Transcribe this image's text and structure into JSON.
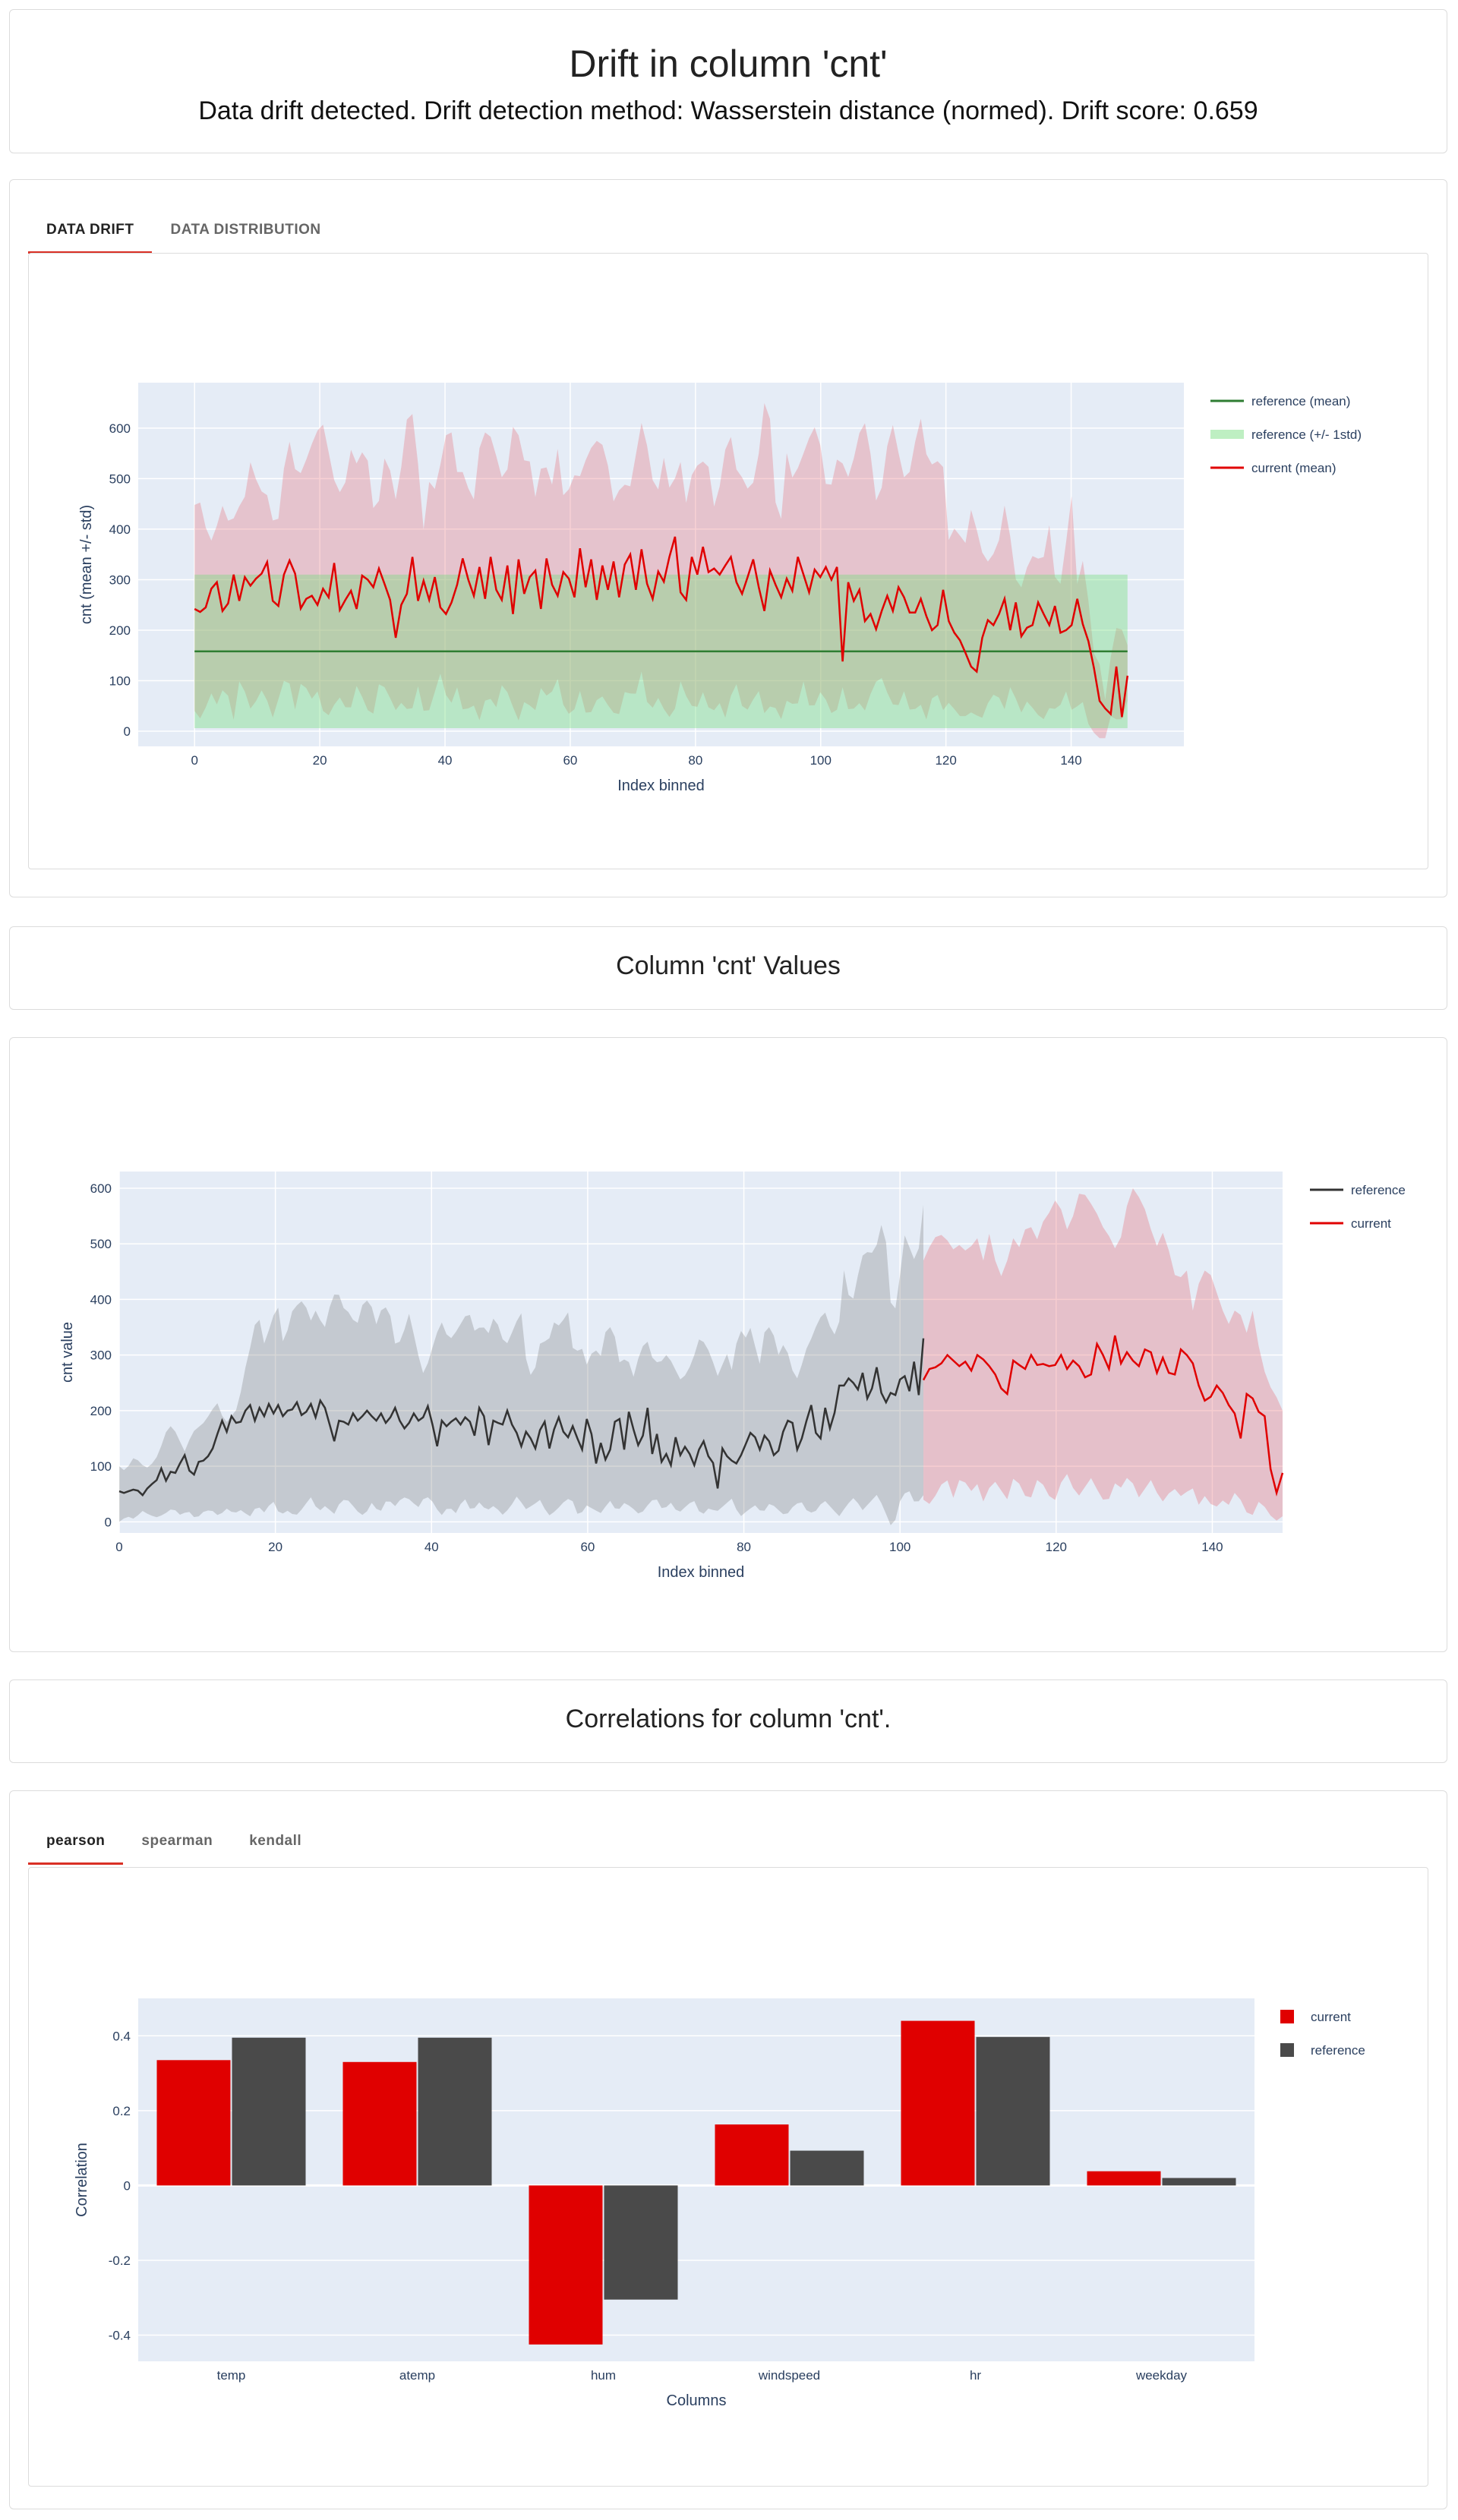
{
  "header": {
    "title": "Drift in column 'cnt'",
    "subtitle": "Data drift detected. Drift detection method: Wasserstein distance (normed). Drift score: 0.659"
  },
  "drift_tabs": [
    "DATA DRIFT",
    "DATA DISTRIBUTION"
  ],
  "values_title": "Column 'cnt' Values",
  "correlations_title": "Correlations for column 'cnt'.",
  "corr_tabs": [
    "pearson",
    "spearman",
    "kendall"
  ],
  "colors": {
    "current": "#e00000",
    "reference": "#4a4a4a",
    "ref_mean": "#2e7d32",
    "plot_bg": "#e5ecf6",
    "tab_accent": "#d93025"
  },
  "chart_data": [
    {
      "type": "line",
      "name": "drift",
      "xlabel": "Index binned",
      "ylabel": "cnt (mean +/- std)",
      "xlim": [
        -9,
        158
      ],
      "ylim": [
        -30,
        690
      ],
      "xticks": [
        0,
        20,
        40,
        60,
        80,
        100,
        120,
        140
      ],
      "yticks": [
        0,
        100,
        200,
        300,
        400,
        500,
        600
      ],
      "legend": [
        "reference (mean)",
        "reference (+/- 1std)",
        "current (mean)"
      ],
      "reference_mean": 158,
      "reference_std_band": [
        6,
        310
      ],
      "current_mean": [
        242,
        236,
        245,
        282,
        295,
        238,
        253,
        310,
        258,
        305,
        288,
        302,
        312,
        335,
        258,
        248,
        310,
        338,
        312,
        243,
        262,
        268,
        250,
        282,
        265,
        333,
        240,
        260,
        278,
        242,
        308,
        300,
        285,
        322,
        292,
        260,
        185,
        250,
        272,
        345,
        258,
        298,
        260,
        305,
        245,
        232,
        255,
        290,
        342,
        300,
        268,
        325,
        262,
        345,
        280,
        260,
        328,
        232,
        340,
        272,
        305,
        318,
        242,
        342,
        290,
        268,
        315,
        302,
        265,
        362,
        285,
        340,
        260,
        328,
        280,
        336,
        265,
        330,
        350,
        280,
        360,
        292,
        262,
        316,
        296,
        345,
        385,
        275,
        260,
        345,
        310,
        365,
        315,
        322,
        310,
        328,
        345,
        295,
        272,
        305,
        340,
        285,
        238,
        318,
        290,
        265,
        302,
        278,
        345,
        310,
        275,
        320,
        305,
        325,
        300,
        325,
        138,
        295,
        258,
        280,
        218,
        232,
        202,
        238,
        268,
        238,
        285,
        265,
        235,
        235,
        262,
        228,
        200,
        210,
        280,
        218,
        195,
        180,
        155,
        128,
        118,
        185,
        220,
        210,
        232,
        262,
        200,
        255,
        188,
        205,
        210,
        255,
        232,
        210,
        248,
        195,
        200,
        210,
        262,
        212,
        178,
        125,
        60,
        45,
        34,
        128,
        28,
        110
      ],
      "current_upper": [
        448,
        454,
        365,
        400,
        450,
        403,
        440,
        459,
        546,
        471,
        480,
        416,
        422,
        600,
        520,
        510,
        550,
        590,
        610,
        540,
        470,
        478,
        560,
        520,
        580,
        440,
        458,
        580,
        440,
        520,
        640,
        620,
        380,
        500,
        472,
        580,
        600,
        500,
        520,
        430,
        560,
        600,
        570,
        500,
        520,
        636,
        535,
        540,
        450,
        560,
        470,
        560,
        440,
        510,
        500,
        540,
        570,
        580,
        530,
        440,
        500,
        470,
        550,
        630,
        510,
        470,
        550,
        450,
        560,
        450,
        520,
        530,
        540,
        440,
        500,
        610,
        520,
        500,
        470,
        520,
        650,
        610,
        340,
        560,
        498,
        530,
        570,
        605,
        560,
        450,
        540,
        530,
        496,
        574,
        620,
        542,
        420,
        548,
        610,
        540,
        480,
        562,
        620,
        526,
        530,
        544,
        360,
        420,
        350,
        440,
        390,
        330,
        345,
        380,
        470,
        310,
        280,
        330,
        355,
        325,
        410,
        280,
        300,
        500,
        278,
        360,
        160,
        140,
        50,
        200,
        210,
        170
      ],
      "current_lower": [
        40,
        20,
        80,
        50,
        100,
        15,
        120,
        40,
        60,
        90,
        20,
        70,
        120,
        40,
        110,
        60,
        80,
        20,
        50,
        70,
        30,
        90,
        60,
        20,
        100,
        80,
        40,
        60,
        30,
        90,
        20,
        70,
        120,
        40,
        90,
        30,
        60,
        20,
        80,
        40,
        100,
        60,
        20,
        70,
        30,
        90,
        60,
        110,
        40,
        30,
        80,
        20,
        60,
        70,
        40,
        30,
        90,
        60,
        120,
        30,
        70,
        40,
        20,
        100,
        60,
        40,
        80,
        30,
        60,
        20,
        110,
        50,
        40,
        90,
        30,
        60,
        20,
        70,
        40,
        100,
        30,
        80,
        60,
        20,
        90,
        30,
        60,
        40,
        90,
        110,
        70,
        40,
        80,
        30,
        60,
        20,
        90,
        40,
        60,
        30,
        30,
        40,
        20,
        60,
        80,
        40,
        100,
        30,
        60,
        40,
        20,
        50,
        40,
        80,
        30,
        70,
        10,
        -10,
        -20,
        40,
        10,
        60
      ]
    },
    {
      "type": "line",
      "name": "values",
      "xlabel": "Index binned",
      "ylabel": "cnt value",
      "xlim": [
        0,
        149
      ],
      "ylim": [
        -20,
        630
      ],
      "xticks": [
        0,
        20,
        40,
        60,
        80,
        100,
        120,
        140
      ],
      "yticks": [
        0,
        100,
        200,
        300,
        400,
        500,
        600
      ],
      "legend": [
        "reference",
        "current"
      ],
      "reference": [
        55,
        52,
        55,
        58,
        56,
        48,
        60,
        68,
        75,
        96,
        74,
        90,
        88,
        105,
        120,
        92,
        85,
        108,
        110,
        118,
        132,
        158,
        182,
        162,
        190,
        178,
        180,
        200,
        210,
        182,
        205,
        190,
        212,
        195,
        210,
        190,
        200,
        202,
        215,
        192,
        198,
        212,
        188,
        218,
        205,
        175,
        145,
        182,
        180,
        175,
        195,
        182,
        190,
        200,
        190,
        182,
        195,
        178,
        188,
        205,
        182,
        168,
        178,
        195,
        182,
        188,
        208,
        175,
        136,
        182,
        172,
        180,
        186,
        175,
        188,
        180,
        155,
        205,
        190,
        138,
        182,
        178,
        175,
        200,
        175,
        160,
        136,
        162,
        150,
        132,
        165,
        180,
        132,
        166,
        188,
        162,
        152,
        172,
        150,
        130,
        185,
        158,
        105,
        142,
        112,
        130,
        180,
        185,
        130,
        198,
        166,
        138,
        155,
        205,
        122,
        158,
        108,
        122,
        102,
        152,
        120,
        135,
        122,
        102,
        130,
        145,
        118,
        106,
        60,
        132,
        118,
        110,
        105,
        120,
        140,
        160,
        152,
        130,
        155,
        145,
        120,
        128,
        162,
        182,
        178,
        130,
        150,
        182,
        210,
        160,
        150,
        205,
        168,
        196,
        245,
        245,
        258,
        250,
        238,
        268,
        222,
        240,
        278,
        232,
        215,
        232,
        228,
        256,
        262,
        235,
        288,
        228,
        330
      ],
      "reference_upper": [
        100,
        90,
        115,
        110,
        95,
        105,
        122,
        160,
        175,
        150,
        125,
        160,
        170,
        180,
        200,
        215,
        175,
        190,
        205,
        270,
        320,
        380,
        320,
        355,
        395,
        310,
        375,
        390,
        400,
        360,
        385,
        340,
        390,
        420,
        385,
        375,
        350,
        395,
        400,
        355,
        390,
        380,
        310,
        335,
        375,
        320,
        265,
        290,
        335,
        360,
        325,
        340,
        360,
        380,
        340,
        355,
        338,
        375,
        330,
        320,
        355,
        375,
        260,
        270,
        330,
        320,
        360,
        350,
        385,
        295,
        320,
        280,
        315,
        295,
        355,
        345,
        280,
        300,
        260,
        305,
        330,
        290,
        285,
        300,
        285,
        255,
        265,
        290,
        330,
        320,
        290,
        255,
        310,
        270,
        350,
        330,
        355,
        270,
        350,
        350,
        300,
        325,
        275,
        255,
        305,
        330,
        360,
        380,
        345,
        330,
        460,
        380,
        440,
        490,
        480,
        500,
        555,
        395,
        380,
        520,
        490,
        460,
        570
      ],
      "reference_lower": [
        0,
        10,
        5,
        20,
        12,
        8,
        15,
        25,
        12,
        20,
        5,
        18,
        22,
        10,
        24,
        15,
        22,
        8,
        30,
        16,
        40,
        12,
        20,
        10,
        25,
        45,
        18,
        30,
        12,
        40,
        38,
        20,
        10,
        35,
        15,
        42,
        28,
        45,
        40,
        25,
        48,
        35,
        10,
        28,
        15,
        45,
        18,
        35,
        20,
        30,
        12,
        25,
        48,
        22,
        30,
        40,
        10,
        20,
        35,
        45,
        8,
        30,
        22,
        15,
        40,
        18,
        35,
        25,
        12,
        30,
        45,
        20,
        35,
        15,
        28,
        40,
        10,
        25,
        18,
        30,
        42,
        8,
        20,
        30,
        15,
        35,
        22,
        10,
        28,
        38,
        15,
        20,
        40,
        25,
        10,
        30,
        45,
        20,
        35,
        50,
        18,
        -15,
        40,
        60,
        30,
        48
      ],
      "current": [
        255,
        275,
        278,
        285,
        300,
        290,
        280,
        288,
        272,
        300,
        292,
        280,
        265,
        240,
        230,
        290,
        282,
        275,
        300,
        282,
        284,
        280,
        282,
        300,
        275,
        290,
        280,
        260,
        265,
        320,
        300,
        275,
        335,
        285,
        305,
        290,
        280,
        310,
        305,
        268,
        295,
        268,
        265,
        310,
        300,
        285,
        245,
        218,
        225,
        245,
        232,
        210,
        195,
        150,
        230,
        222,
        198,
        190,
        95,
        52,
        88
      ],
      "current_upper": [
        470,
        500,
        520,
        510,
        490,
        500,
        480,
        520,
        470,
        530,
        430,
        460,
        510,
        490,
        550,
        500,
        540,
        560,
        590,
        520,
        550,
        600,
        580,
        560,
        530,
        510,
        480,
        560,
        600,
        580,
        550,
        490,
        520,
        480,
        420,
        470,
        380,
        440,
        460,
        420,
        380,
        350,
        400,
        330,
        380,
        300,
        250,
        230,
        200
      ],
      "current_lower": [
        40,
        30,
        60,
        80,
        40,
        90,
        50,
        70,
        30,
        80,
        60,
        40,
        90,
        50,
        40,
        80,
        60,
        30,
        70,
        90,
        40,
        60,
        80,
        50,
        30,
        70,
        60,
        90,
        40,
        60,
        80,
        30,
        50,
        60,
        40,
        70,
        30,
        50,
        20,
        40,
        30,
        60,
        20,
        10,
        40,
        20,
        0,
        10
      ]
    },
    {
      "type": "bar",
      "name": "correlations",
      "title": "",
      "xlabel": "Columns",
      "ylabel": "Correlation",
      "ylim": [
        -0.47,
        0.5
      ],
      "yticks": [
        -0.4,
        -0.2,
        0,
        0.2,
        0.4
      ],
      "categories": [
        "temp",
        "atemp",
        "hum",
        "windspeed",
        "hr",
        "weekday"
      ],
      "series": [
        {
          "name": "current",
          "values": [
            0.335,
            0.33,
            -0.425,
            0.163,
            0.44,
            0.038
          ]
        },
        {
          "name": "reference",
          "values": [
            0.395,
            0.395,
            -0.305,
            0.093,
            0.397,
            0.02
          ]
        }
      ]
    }
  ]
}
